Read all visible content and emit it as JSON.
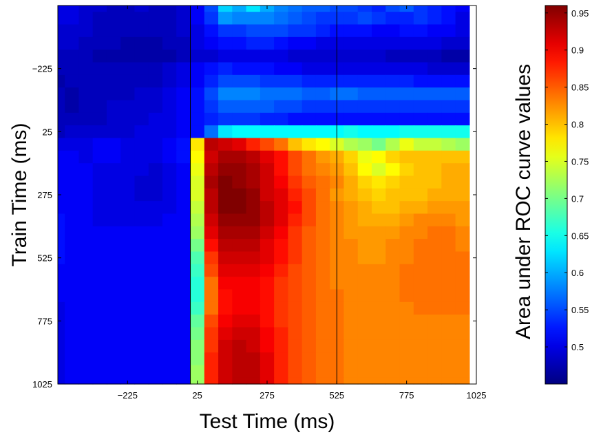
{
  "chart_data": {
    "type": "heatmap",
    "title": "",
    "xlabel": "Test Time (ms)",
    "ylabel": "Train Time (ms)",
    "colorbar_label": "Area under ROC curve values",
    "colormap": "jet",
    "x_range": [
      -475,
      1025
    ],
    "y_range": [
      -475,
      1025
    ],
    "y_direction": "top-to-bottom increasing",
    "bin_ms": 50,
    "x_ticks": [
      -225,
      25,
      275,
      525,
      775,
      1025
    ],
    "x_tick_labels": [
      "−225",
      "25",
      "275",
      "525",
      "775",
      "1025"
    ],
    "y_ticks": [
      -225,
      25,
      275,
      525,
      775,
      1025
    ],
    "y_tick_labels": [
      "−225",
      "25",
      "275",
      "525",
      "775",
      "1025"
    ],
    "vertical_lines": [
      0,
      525
    ],
    "colorbar_range": [
      0.45,
      0.96
    ],
    "colorbar_ticks": [
      0.5,
      0.55,
      0.6,
      0.65,
      0.7,
      0.75,
      0.8,
      0.85,
      0.9,
      0.95
    ],
    "colorbar_tick_labels": [
      "0.5",
      "0.55",
      "0.6",
      "0.65",
      "0.7",
      "0.75",
      "0.8",
      "0.85",
      "0.9",
      "0.95"
    ],
    "train_times_ms": [
      -475,
      -425,
      -375,
      -325,
      -275,
      -225,
      -175,
      -125,
      -75,
      -25,
      25,
      75,
      125,
      175,
      225,
      275,
      325,
      375,
      425,
      475,
      525,
      575,
      625,
      675,
      725,
      775,
      825,
      875,
      925,
      975,
      1025
    ],
    "test_times_ms": [
      -475,
      -425,
      -375,
      -325,
      -275,
      -225,
      -175,
      -125,
      -75,
      -25,
      25,
      75,
      125,
      175,
      225,
      275,
      325,
      375,
      425,
      475,
      525,
      575,
      625,
      675,
      725,
      775,
      825,
      875,
      925,
      975
    ],
    "values": [
      [
        0.5,
        0.5,
        0.49,
        0.49,
        0.48,
        0.48,
        0.49,
        0.48,
        0.48,
        0.49,
        0.51,
        0.55,
        0.62,
        0.6,
        0.63,
        0.6,
        0.58,
        0.57,
        0.56,
        0.56,
        0.55,
        0.55,
        0.54,
        0.53,
        0.55,
        0.56,
        0.54,
        0.53,
        0.52,
        0.51
      ],
      [
        0.5,
        0.5,
        0.49,
        0.48,
        0.48,
        0.48,
        0.48,
        0.48,
        0.48,
        0.49,
        0.51,
        0.54,
        0.59,
        0.58,
        0.58,
        0.58,
        0.57,
        0.56,
        0.55,
        0.54,
        0.54,
        0.54,
        0.55,
        0.54,
        0.53,
        0.53,
        0.54,
        0.53,
        0.52,
        0.5
      ],
      [
        0.49,
        0.49,
        0.49,
        0.48,
        0.48,
        0.48,
        0.48,
        0.48,
        0.48,
        0.49,
        0.5,
        0.52,
        0.54,
        0.54,
        0.55,
        0.55,
        0.55,
        0.54,
        0.54,
        0.53,
        0.52,
        0.52,
        0.52,
        0.51,
        0.51,
        0.52,
        0.52,
        0.51,
        0.51,
        0.5
      ],
      [
        0.49,
        0.49,
        0.48,
        0.48,
        0.48,
        0.47,
        0.47,
        0.47,
        0.48,
        0.48,
        0.5,
        0.51,
        0.52,
        0.52,
        0.53,
        0.53,
        0.52,
        0.51,
        0.51,
        0.5,
        0.5,
        0.5,
        0.5,
        0.5,
        0.5,
        0.5,
        0.5,
        0.5,
        0.49,
        0.49
      ],
      [
        0.48,
        0.48,
        0.48,
        0.47,
        0.47,
        0.47,
        0.47,
        0.47,
        0.47,
        0.48,
        0.49,
        0.49,
        0.5,
        0.5,
        0.5,
        0.5,
        0.5,
        0.49,
        0.49,
        0.49,
        0.49,
        0.49,
        0.49,
        0.49,
        0.48,
        0.48,
        0.48,
        0.48,
        0.47,
        0.47
      ],
      [
        0.48,
        0.48,
        0.48,
        0.48,
        0.48,
        0.48,
        0.48,
        0.48,
        0.49,
        0.5,
        0.51,
        0.52,
        0.53,
        0.52,
        0.52,
        0.52,
        0.51,
        0.51,
        0.5,
        0.5,
        0.5,
        0.5,
        0.5,
        0.5,
        0.5,
        0.5,
        0.5,
        0.49,
        0.49,
        0.49
      ],
      [
        0.47,
        0.48,
        0.48,
        0.48,
        0.48,
        0.48,
        0.48,
        0.48,
        0.49,
        0.5,
        0.51,
        0.53,
        0.55,
        0.55,
        0.55,
        0.54,
        0.54,
        0.54,
        0.53,
        0.53,
        0.53,
        0.53,
        0.53,
        0.53,
        0.53,
        0.53,
        0.52,
        0.52,
        0.52,
        0.52
      ],
      [
        0.48,
        0.47,
        0.48,
        0.48,
        0.48,
        0.48,
        0.49,
        0.49,
        0.5,
        0.51,
        0.52,
        0.55,
        0.58,
        0.58,
        0.58,
        0.57,
        0.57,
        0.57,
        0.56,
        0.56,
        0.57,
        0.57,
        0.56,
        0.56,
        0.56,
        0.56,
        0.56,
        0.56,
        0.56,
        0.56
      ],
      [
        0.48,
        0.47,
        0.48,
        0.48,
        0.49,
        0.49,
        0.49,
        0.49,
        0.5,
        0.51,
        0.52,
        0.54,
        0.56,
        0.56,
        0.56,
        0.56,
        0.55,
        0.55,
        0.54,
        0.54,
        0.54,
        0.54,
        0.54,
        0.54,
        0.54,
        0.54,
        0.54,
        0.54,
        0.54,
        0.54
      ],
      [
        0.48,
        0.48,
        0.48,
        0.48,
        0.49,
        0.49,
        0.49,
        0.5,
        0.5,
        0.51,
        0.52,
        0.53,
        0.54,
        0.54,
        0.54,
        0.53,
        0.53,
        0.52,
        0.52,
        0.52,
        0.52,
        0.52,
        0.52,
        0.52,
        0.52,
        0.52,
        0.52,
        0.52,
        0.52,
        0.52
      ],
      [
        0.48,
        0.49,
        0.49,
        0.49,
        0.49,
        0.49,
        0.5,
        0.5,
        0.5,
        0.51,
        0.52,
        0.57,
        0.63,
        0.64,
        0.64,
        0.64,
        0.64,
        0.64,
        0.64,
        0.64,
        0.64,
        0.65,
        0.64,
        0.64,
        0.64,
        0.65,
        0.65,
        0.65,
        0.65,
        0.65
      ],
      [
        0.5,
        0.5,
        0.5,
        0.51,
        0.51,
        0.5,
        0.5,
        0.5,
        0.51,
        0.52,
        0.78,
        0.93,
        0.92,
        0.91,
        0.88,
        0.86,
        0.84,
        0.8,
        0.78,
        0.77,
        0.75,
        0.73,
        0.72,
        0.7,
        0.73,
        0.76,
        0.74,
        0.74,
        0.73,
        0.72
      ],
      [
        0.51,
        0.51,
        0.5,
        0.51,
        0.51,
        0.5,
        0.5,
        0.5,
        0.51,
        0.52,
        0.77,
        0.92,
        0.94,
        0.94,
        0.93,
        0.91,
        0.89,
        0.86,
        0.84,
        0.82,
        0.81,
        0.79,
        0.76,
        0.77,
        0.79,
        0.8,
        0.8,
        0.8,
        0.8,
        0.8
      ],
      [
        0.51,
        0.51,
        0.51,
        0.5,
        0.5,
        0.5,
        0.5,
        0.49,
        0.5,
        0.51,
        0.76,
        0.93,
        0.95,
        0.95,
        0.94,
        0.92,
        0.89,
        0.86,
        0.84,
        0.83,
        0.82,
        0.8,
        0.77,
        0.75,
        0.77,
        0.79,
        0.8,
        0.8,
        0.81,
        0.81
      ],
      [
        0.51,
        0.51,
        0.51,
        0.5,
        0.5,
        0.5,
        0.49,
        0.49,
        0.5,
        0.51,
        0.75,
        0.94,
        0.96,
        0.95,
        0.94,
        0.92,
        0.9,
        0.87,
        0.85,
        0.84,
        0.83,
        0.81,
        0.79,
        0.78,
        0.79,
        0.8,
        0.8,
        0.8,
        0.81,
        0.81
      ],
      [
        0.51,
        0.51,
        0.51,
        0.5,
        0.5,
        0.5,
        0.49,
        0.49,
        0.5,
        0.51,
        0.75,
        0.93,
        0.96,
        0.96,
        0.95,
        0.92,
        0.91,
        0.88,
        0.86,
        0.84,
        0.82,
        0.81,
        0.8,
        0.79,
        0.8,
        0.8,
        0.8,
        0.81,
        0.81,
        0.81
      ],
      [
        0.51,
        0.51,
        0.51,
        0.5,
        0.5,
        0.5,
        0.5,
        0.5,
        0.5,
        0.51,
        0.74,
        0.93,
        0.96,
        0.96,
        0.95,
        0.93,
        0.91,
        0.89,
        0.86,
        0.84,
        0.83,
        0.82,
        0.81,
        0.8,
        0.8,
        0.81,
        0.81,
        0.82,
        0.82,
        0.82
      ],
      [
        0.52,
        0.51,
        0.51,
        0.5,
        0.5,
        0.5,
        0.5,
        0.5,
        0.51,
        0.51,
        0.73,
        0.92,
        0.95,
        0.95,
        0.95,
        0.93,
        0.91,
        0.88,
        0.86,
        0.84,
        0.83,
        0.82,
        0.81,
        0.81,
        0.81,
        0.82,
        0.83,
        0.83,
        0.83,
        0.82
      ],
      [
        0.52,
        0.51,
        0.51,
        0.51,
        0.51,
        0.51,
        0.51,
        0.51,
        0.51,
        0.51,
        0.72,
        0.91,
        0.94,
        0.94,
        0.94,
        0.92,
        0.9,
        0.87,
        0.85,
        0.84,
        0.83,
        0.82,
        0.82,
        0.82,
        0.82,
        0.83,
        0.83,
        0.84,
        0.84,
        0.83
      ],
      [
        0.52,
        0.51,
        0.51,
        0.51,
        0.51,
        0.51,
        0.51,
        0.51,
        0.51,
        0.51,
        0.7,
        0.89,
        0.93,
        0.93,
        0.93,
        0.91,
        0.89,
        0.87,
        0.85,
        0.84,
        0.83,
        0.83,
        0.82,
        0.82,
        0.83,
        0.83,
        0.84,
        0.84,
        0.84,
        0.83
      ],
      [
        0.52,
        0.51,
        0.51,
        0.51,
        0.51,
        0.51,
        0.51,
        0.51,
        0.51,
        0.51,
        0.68,
        0.87,
        0.92,
        0.92,
        0.92,
        0.91,
        0.89,
        0.87,
        0.85,
        0.84,
        0.83,
        0.83,
        0.82,
        0.82,
        0.83,
        0.83,
        0.84,
        0.84,
        0.84,
        0.84
      ],
      [
        0.51,
        0.51,
        0.51,
        0.51,
        0.51,
        0.51,
        0.51,
        0.51,
        0.51,
        0.51,
        0.67,
        0.86,
        0.91,
        0.91,
        0.91,
        0.9,
        0.88,
        0.86,
        0.85,
        0.84,
        0.83,
        0.83,
        0.83,
        0.83,
        0.83,
        0.84,
        0.84,
        0.84,
        0.84,
        0.84
      ],
      [
        0.51,
        0.51,
        0.51,
        0.51,
        0.51,
        0.51,
        0.51,
        0.51,
        0.51,
        0.51,
        0.66,
        0.84,
        0.9,
        0.9,
        0.9,
        0.89,
        0.87,
        0.86,
        0.85,
        0.84,
        0.83,
        0.83,
        0.83,
        0.83,
        0.83,
        0.84,
        0.84,
        0.84,
        0.84,
        0.84
      ],
      [
        0.51,
        0.51,
        0.51,
        0.51,
        0.51,
        0.51,
        0.51,
        0.51,
        0.51,
        0.51,
        0.66,
        0.84,
        0.89,
        0.9,
        0.9,
        0.89,
        0.87,
        0.86,
        0.85,
        0.84,
        0.84,
        0.83,
        0.83,
        0.83,
        0.83,
        0.84,
        0.84,
        0.84,
        0.84,
        0.84
      ],
      [
        0.5,
        0.51,
        0.51,
        0.51,
        0.51,
        0.51,
        0.51,
        0.51,
        0.51,
        0.51,
        0.67,
        0.84,
        0.89,
        0.9,
        0.9,
        0.89,
        0.87,
        0.86,
        0.85,
        0.84,
        0.84,
        0.83,
        0.83,
        0.83,
        0.83,
        0.83,
        0.84,
        0.84,
        0.84,
        0.84
      ],
      [
        0.5,
        0.51,
        0.51,
        0.51,
        0.51,
        0.51,
        0.51,
        0.51,
        0.51,
        0.51,
        0.69,
        0.86,
        0.9,
        0.91,
        0.91,
        0.89,
        0.87,
        0.86,
        0.85,
        0.84,
        0.84,
        0.83,
        0.83,
        0.83,
        0.83,
        0.83,
        0.83,
        0.83,
        0.83,
        0.83
      ],
      [
        0.5,
        0.51,
        0.51,
        0.51,
        0.51,
        0.51,
        0.51,
        0.51,
        0.51,
        0.51,
        0.7,
        0.87,
        0.91,
        0.92,
        0.92,
        0.9,
        0.88,
        0.86,
        0.85,
        0.84,
        0.84,
        0.83,
        0.83,
        0.83,
        0.83,
        0.83,
        0.83,
        0.83,
        0.83,
        0.83
      ],
      [
        0.5,
        0.51,
        0.51,
        0.51,
        0.51,
        0.51,
        0.51,
        0.51,
        0.51,
        0.51,
        0.71,
        0.87,
        0.92,
        0.93,
        0.92,
        0.9,
        0.88,
        0.86,
        0.85,
        0.84,
        0.84,
        0.83,
        0.83,
        0.83,
        0.83,
        0.83,
        0.83,
        0.83,
        0.83,
        0.83
      ],
      [
        0.5,
        0.51,
        0.51,
        0.51,
        0.51,
        0.51,
        0.51,
        0.51,
        0.51,
        0.51,
        0.71,
        0.88,
        0.92,
        0.93,
        0.93,
        0.91,
        0.88,
        0.86,
        0.85,
        0.84,
        0.84,
        0.83,
        0.83,
        0.83,
        0.83,
        0.83,
        0.83,
        0.83,
        0.83,
        0.83
      ],
      [
        0.5,
        0.51,
        0.51,
        0.51,
        0.51,
        0.51,
        0.51,
        0.51,
        0.51,
        0.51,
        0.72,
        0.88,
        0.92,
        0.93,
        0.93,
        0.91,
        0.88,
        0.86,
        0.85,
        0.84,
        0.84,
        0.83,
        0.83,
        0.83,
        0.83,
        0.83,
        0.83,
        0.83,
        0.83,
        0.83
      ],
      [
        0.5,
        0.51,
        0.51,
        0.51,
        0.51,
        0.51,
        0.51,
        0.51,
        0.51,
        0.51,
        0.72,
        0.88,
        0.92,
        0.93,
        0.93,
        0.91,
        0.88,
        0.86,
        0.85,
        0.84,
        0.84,
        0.83,
        0.83,
        0.83,
        0.83,
        0.83,
        0.83,
        0.83,
        0.83,
        0.83
      ]
    ]
  }
}
